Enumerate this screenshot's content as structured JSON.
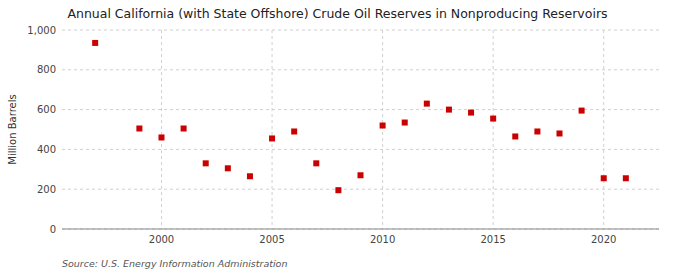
{
  "chart_data": {
    "type": "scatter",
    "title": "Annual California (with State Offshore) Crude Oil Reserves in Nonproducing Reservoirs",
    "ylabel": "Million Barrels",
    "source": "Source: U.S. Energy Information Administration",
    "x": [
      1997,
      1999,
      2000,
      2001,
      2002,
      2003,
      2004,
      2005,
      2006,
      2007,
      2008,
      2009,
      2010,
      2011,
      2012,
      2013,
      2014,
      2015,
      2016,
      2017,
      2018,
      2019,
      2020,
      2021
    ],
    "values": [
      935,
      505,
      460,
      505,
      330,
      305,
      265,
      455,
      490,
      330,
      195,
      270,
      520,
      535,
      630,
      600,
      585,
      555,
      465,
      490,
      480,
      595,
      255,
      255
    ],
    "color": "#cc0000",
    "marker": "square",
    "xlim": [
      1995.5,
      2022.5
    ],
    "xticks": [
      2000,
      2005,
      2010,
      2015,
      2020
    ],
    "ylim": [
      0,
      1000
    ],
    "yticks": [
      0,
      200,
      400,
      600,
      800,
      {
        "value": 1000,
        "label": "1,000"
      }
    ],
    "grid": true
  }
}
